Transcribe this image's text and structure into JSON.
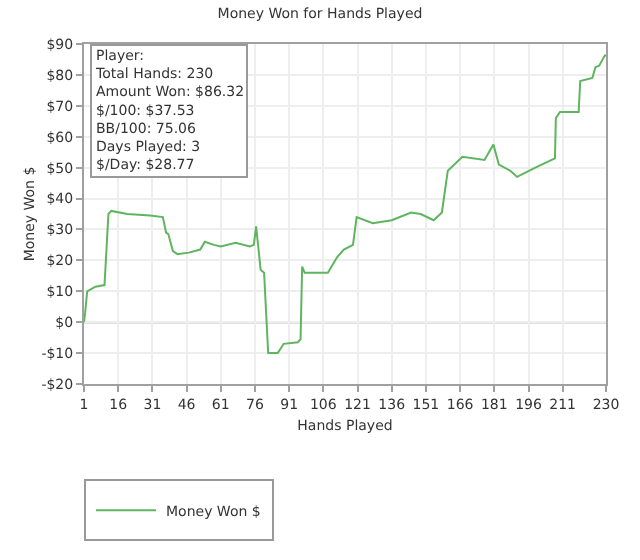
{
  "chart_data": {
    "type": "line",
    "title": "Money Won for Hands Played",
    "xlabel": "Hands Played",
    "ylabel": "Money Won $",
    "x": [
      1,
      1.5,
      2.4,
      6,
      10,
      11.7,
      13,
      20,
      30,
      35.6,
      37,
      38,
      40,
      42,
      47,
      52,
      54,
      58,
      61,
      67.5,
      73.7,
      75.5,
      76.5,
      77.5,
      78.5,
      80,
      81.8,
      86,
      88.6,
      94.8,
      96,
      96.7,
      97.8,
      108,
      112,
      115,
      119,
      120.6,
      127.7,
      136,
      144.5,
      148.7,
      154.4,
      158,
      160.6,
      167,
      176.7,
      180.6,
      183,
      188,
      191,
      199,
      207.6,
      208,
      209.8,
      218,
      218.7,
      224,
      225.4,
      227,
      229.5,
      230
    ],
    "series": [
      {
        "name": "Money Won $",
        "color": "#5fb55f",
        "values": [
          0,
          3,
          10,
          11.5,
          12,
          35,
          36,
          35,
          34.5,
          34,
          29,
          28.5,
          23,
          22,
          22.5,
          23.5,
          26,
          25,
          24.5,
          25.7,
          24.5,
          25,
          31,
          24,
          17,
          16,
          -10,
          -10,
          -7,
          -6.5,
          -5.5,
          18,
          16,
          16,
          21,
          23.5,
          25,
          34,
          32,
          33,
          35.5,
          35,
          33,
          35.5,
          49,
          53.5,
          52.5,
          57.5,
          51,
          49,
          47,
          50,
          53,
          66,
          68,
          68,
          78,
          79,
          82.5,
          83,
          86.32,
          86.32
        ]
      }
    ],
    "xlim": [
      1,
      230
    ],
    "xticks": [
      1,
      16,
      31,
      46,
      61,
      76,
      91,
      106,
      121,
      136,
      151,
      166,
      181,
      196,
      211,
      230
    ],
    "ylim": [
      -20,
      90
    ],
    "yticks": [
      {
        "value": -20,
        "label": "-$20"
      },
      {
        "value": -10,
        "label": "-$10"
      },
      {
        "value": 0,
        "label": "$0"
      },
      {
        "value": 10,
        "label": "$10"
      },
      {
        "value": 20,
        "label": "$20"
      },
      {
        "value": 30,
        "label": "$30"
      },
      {
        "value": 40,
        "label": "$40"
      },
      {
        "value": 50,
        "label": "$50"
      },
      {
        "value": 60,
        "label": "$60"
      },
      {
        "value": 70,
        "label": "$70"
      },
      {
        "value": 80,
        "label": "$80"
      },
      {
        "value": 90,
        "label": "$90"
      }
    ],
    "ref_lines": [
      {
        "axis": "y",
        "value": 0,
        "color": "#808080"
      }
    ],
    "annotations": [
      "Player:",
      "Total Hands: 230",
      "Amount Won: $86.32",
      "$/100: $37.53",
      "BB/100: 75.06",
      "Days Played: 3",
      "$/Day: $28.77"
    ],
    "grid": true,
    "legend": "bottom left",
    "marker": "none",
    "line_style": "solid"
  }
}
